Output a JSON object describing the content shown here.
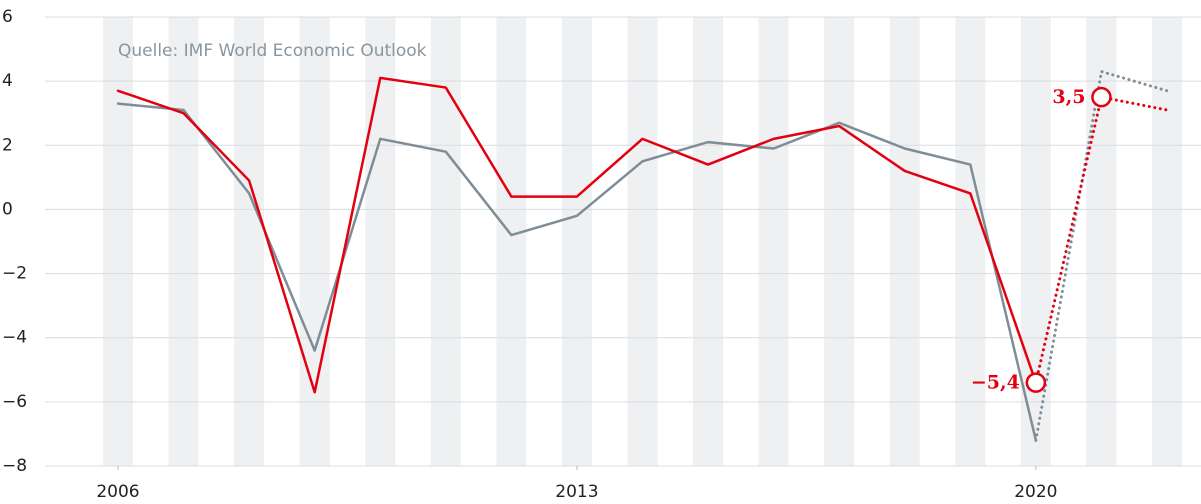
{
  "chart_data": {
    "type": "line",
    "annotation": "Quelle: IMF World Economic Outlook",
    "x": [
      2006,
      2007,
      2008,
      2009,
      2010,
      2011,
      2012,
      2013,
      2014,
      2015,
      2016,
      2017,
      2018,
      2019,
      2020,
      2021,
      2022
    ],
    "xlim": [
      2006,
      2022
    ],
    "xticks": [
      2006,
      2013,
      2020
    ],
    "ylim": [
      -8,
      6
    ],
    "yticks": [
      6,
      4,
      2,
      0,
      {
        "value": -2,
        "label": "−2"
      },
      {
        "value": -4,
        "label": "−4"
      },
      {
        "value": -6,
        "label": "−6"
      },
      {
        "value": -8,
        "label": "−8"
      }
    ],
    "grid": true,
    "series": [
      {
        "color": "#7f8d96",
        "line_style": "solid",
        "values": [
          3.3,
          3.1,
          0.5,
          -4.4,
          2.2,
          1.8,
          -0.8,
          -0.2,
          1.5,
          2.1,
          1.9,
          2.7,
          1.9,
          1.4,
          -7.2,
          null,
          null
        ]
      },
      {
        "color": "#7f8d96",
        "line_style": "dotted",
        "values": [
          null,
          null,
          null,
          null,
          null,
          null,
          null,
          null,
          null,
          null,
          null,
          null,
          null,
          null,
          -7.2,
          4.3,
          3.7
        ]
      },
      {
        "color": "#e3000f",
        "line_style": "solid",
        "values": [
          3.7,
          3.0,
          0.9,
          -5.7,
          4.1,
          3.8,
          0.4,
          0.4,
          2.2,
          1.4,
          2.2,
          2.6,
          1.2,
          0.5,
          -5.4,
          null,
          null
        ]
      },
      {
        "color": "#e3000f",
        "line_style": "dotted",
        "values": [
          null,
          null,
          null,
          null,
          null,
          null,
          null,
          null,
          null,
          null,
          null,
          null,
          null,
          null,
          -5.4,
          3.5,
          3.1
        ],
        "value_labels": [
          null,
          null,
          null,
          null,
          null,
          null,
          null,
          null,
          null,
          null,
          null,
          null,
          null,
          null,
          "−5,4",
          "3,5",
          null
        ]
      }
    ]
  }
}
